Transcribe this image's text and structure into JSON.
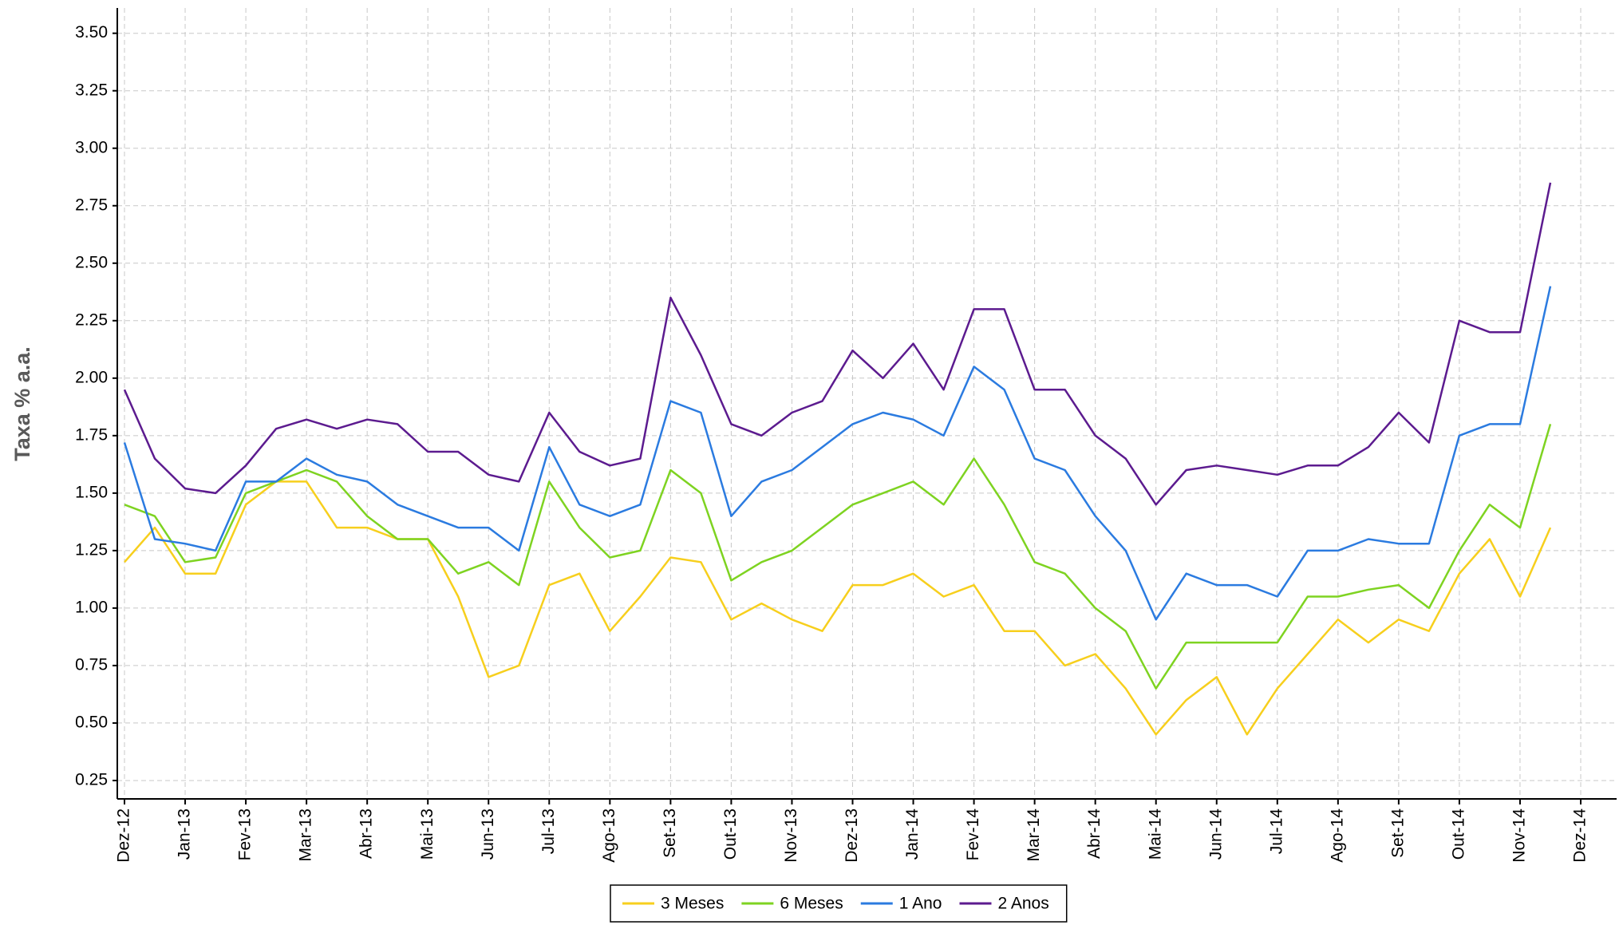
{
  "chart_data": {
    "type": "line",
    "y_label": "Taxa % a.a.",
    "categories": [
      "Dez-12",
      null,
      "Jan-13",
      null,
      "Fev-13",
      null,
      "Mar-13",
      null,
      "Abr-13",
      null,
      "Mai-13",
      null,
      "Jun-13",
      null,
      "Jul-13",
      null,
      "Ago-13",
      null,
      "Set-13",
      null,
      "Out-13",
      null,
      "Nov-13",
      null,
      "Dez-13",
      null,
      "Jan-14",
      null,
      "Fev-14",
      null,
      "Mar-14",
      null,
      "Abr-14",
      null,
      "Mai-14",
      null,
      "Jun-14",
      null,
      "Jul-14",
      null,
      "Ago-14",
      null,
      "Set-14",
      null,
      "Out-14",
      null,
      "Nov-14",
      null,
      "Dez-14"
    ],
    "series": [
      {
        "name": "3 Meses",
        "color": "#f7cf1d",
        "values": [
          1.2,
          1.35,
          1.15,
          1.15,
          1.45,
          1.55,
          1.55,
          1.35,
          1.35,
          1.3,
          1.3,
          1.05,
          0.7,
          0.75,
          1.1,
          1.15,
          0.9,
          1.05,
          1.22,
          1.2,
          0.95,
          1.02,
          0.95,
          0.9,
          1.1,
          1.1,
          1.15,
          1.05,
          1.1,
          0.9,
          0.9,
          0.75,
          0.8,
          0.65,
          0.45,
          0.6,
          0.7,
          0.45,
          0.65,
          0.8,
          0.95,
          0.85,
          0.95,
          0.9,
          1.15,
          1.3,
          1.05,
          1.35,
          null
        ]
      },
      {
        "name": "6 Meses",
        "color": "#7ed321",
        "values": [
          1.45,
          1.4,
          1.2,
          1.22,
          1.5,
          1.55,
          1.6,
          1.55,
          1.4,
          1.3,
          1.3,
          1.15,
          1.2,
          1.1,
          1.55,
          1.35,
          1.22,
          1.25,
          1.6,
          1.5,
          1.12,
          1.2,
          1.25,
          1.35,
          1.45,
          1.5,
          1.55,
          1.45,
          1.65,
          1.45,
          1.2,
          1.15,
          1.0,
          0.9,
          0.65,
          0.85,
          0.85,
          0.85,
          0.85,
          1.05,
          1.05,
          1.08,
          1.1,
          1.0,
          1.25,
          1.45,
          1.35,
          1.8,
          null
        ]
      },
      {
        "name": "1 Ano",
        "color": "#2b7be0",
        "values": [
          1.72,
          1.3,
          1.28,
          1.25,
          1.55,
          1.55,
          1.65,
          1.58,
          1.55,
          1.45,
          1.4,
          1.35,
          1.35,
          1.25,
          1.7,
          1.45,
          1.4,
          1.45,
          1.9,
          1.85,
          1.4,
          1.55,
          1.6,
          1.7,
          1.8,
          1.85,
          1.82,
          1.75,
          2.05,
          1.95,
          1.65,
          1.6,
          1.4,
          1.25,
          0.95,
          1.15,
          1.1,
          1.1,
          1.05,
          1.25,
          1.25,
          1.3,
          1.28,
          1.28,
          1.75,
          1.8,
          1.8,
          2.4,
          null
        ]
      },
      {
        "name": "2 Anos",
        "color": "#5c1b8f",
        "values": [
          1.95,
          1.65,
          1.52,
          1.5,
          1.62,
          1.78,
          1.82,
          1.78,
          1.82,
          1.8,
          1.68,
          1.68,
          1.58,
          1.55,
          1.85,
          1.68,
          1.62,
          1.65,
          2.35,
          2.1,
          1.8,
          1.75,
          1.85,
          1.9,
          2.12,
          2.0,
          2.15,
          1.95,
          2.3,
          2.3,
          1.95,
          1.95,
          1.75,
          1.65,
          1.45,
          1.6,
          1.62,
          1.6,
          1.58,
          1.62,
          1.62,
          1.7,
          1.85,
          1.72,
          2.25,
          2.2,
          2.2,
          2.85,
          null
        ]
      }
    ],
    "ylim": [
      0.17,
      3.61
    ],
    "yticks": [
      {
        "value": 0.25,
        "label": "0.25"
      },
      {
        "value": 0.5,
        "label": "0.50"
      },
      {
        "value": 0.75,
        "label": "0.75"
      },
      {
        "value": 1,
        "label": "1.00"
      },
      {
        "value": 1.25,
        "label": "1.25"
      },
      {
        "value": 1.5,
        "label": "1.50"
      },
      {
        "value": 1.75,
        "label": "1.75"
      },
      {
        "value": 2,
        "label": "2.00"
      },
      {
        "value": 2.25,
        "label": "2.25"
      },
      {
        "value": 2.5,
        "label": "2.50"
      },
      {
        "value": 2.75,
        "label": "2.75"
      },
      {
        "value": 3,
        "label": "3.00"
      },
      {
        "value": 3.25,
        "label": "3.25"
      },
      {
        "value": 3.5,
        "label": "3.50"
      }
    ],
    "grid": true,
    "legend": "bottom"
  }
}
